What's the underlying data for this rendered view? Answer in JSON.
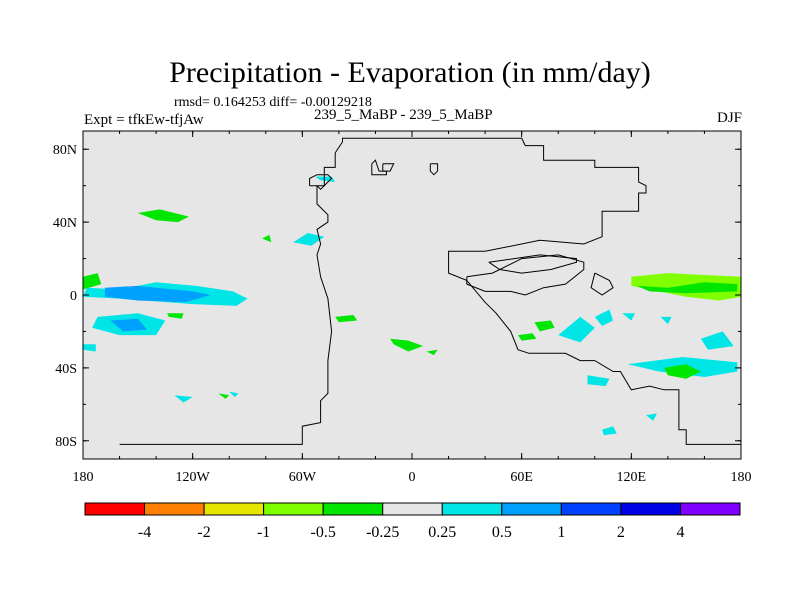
{
  "chart_data": {
    "type": "heatmap",
    "title": "Precipitation - Evaporation (in mm/day)",
    "stats_line": "rmsd= 0.164253 diff= -0.00129218",
    "left_label": "Expt = tfkEw-tfjAw",
    "center_label": "239_5_MaBP - 239_5_MaBP",
    "right_label": "DJF",
    "x_ticks": [
      {
        "value": -180,
        "label": "180"
      },
      {
        "value": -120,
        "label": "120W"
      },
      {
        "value": -60,
        "label": "60W"
      },
      {
        "value": 0,
        "label": "0"
      },
      {
        "value": 60,
        "label": "60E"
      },
      {
        "value": 120,
        "label": "120E"
      },
      {
        "value": 180,
        "label": "180"
      }
    ],
    "y_ticks": [
      {
        "value": 80,
        "label": "80N"
      },
      {
        "value": 40,
        "label": "40N"
      },
      {
        "value": 0,
        "label": "0"
      },
      {
        "value": -40,
        "label": "40S"
      },
      {
        "value": -80,
        "label": "80S"
      }
    ],
    "xlim": [
      -180,
      180
    ],
    "ylim": [
      -90,
      90
    ],
    "background_color": "#e6e6e6",
    "colorbar": {
      "colors": [
        "#ff0000",
        "#ff8000",
        "#e6e600",
        "#80ff00",
        "#00e600",
        "#e6e6e6",
        "#00e6e6",
        "#00a0ff",
        "#0040ff",
        "#0000e6",
        "#8000ff"
      ],
      "labels": [
        "-4",
        "-2",
        "-1",
        "-0.5",
        "-0.25",
        "0.25",
        "0.5",
        "1",
        "2",
        "4"
      ]
    },
    "anomaly_regions": [
      {
        "color": "#00e600",
        "points": [
          [
            -150,
            45
          ],
          [
            -140,
            41
          ],
          [
            -128,
            40
          ],
          [
            -122,
            43
          ],
          [
            -138,
            47
          ]
        ]
      },
      {
        "color": "#00e600",
        "points": [
          [
            -82,
            31
          ],
          [
            -77,
            29
          ],
          [
            -78,
            33
          ]
        ]
      },
      {
        "color": "#00e6e6",
        "points": [
          [
            -65,
            29
          ],
          [
            -55,
            27
          ],
          [
            -48,
            32
          ],
          [
            -57,
            34
          ]
        ]
      },
      {
        "color": "#00e6e6",
        "points": [
          [
            -53,
            65
          ],
          [
            -44,
            65
          ],
          [
            -42,
            62
          ],
          [
            -50,
            63
          ]
        ]
      },
      {
        "color": "#00e600",
        "points": [
          [
            -180,
            10
          ],
          [
            -172,
            12
          ],
          [
            -170,
            6
          ],
          [
            -180,
            3
          ]
        ]
      },
      {
        "color": "#00e6e6",
        "points": [
          [
            -178,
            4
          ],
          [
            -160,
            3
          ],
          [
            -140,
            7
          ],
          [
            -118,
            5
          ],
          [
            -98,
            2
          ],
          [
            -90,
            -2
          ],
          [
            -96,
            -6
          ],
          [
            -120,
            -5
          ],
          [
            -160,
            -2
          ],
          [
            -180,
            -1
          ]
        ]
      },
      {
        "color": "#00a0ff",
        "points": [
          [
            -168,
            4
          ],
          [
            -150,
            5
          ],
          [
            -120,
            2
          ],
          [
            -110,
            0
          ],
          [
            -124,
            -4
          ],
          [
            -150,
            -3
          ],
          [
            -168,
            -1
          ]
        ]
      },
      {
        "color": "#00e6e6",
        "points": [
          [
            -172,
            -12
          ],
          [
            -150,
            -10
          ],
          [
            -135,
            -14
          ],
          [
            -140,
            -22
          ],
          [
            -160,
            -22
          ],
          [
            -175,
            -18
          ]
        ]
      },
      {
        "color": "#00a0ff",
        "points": [
          [
            -165,
            -14
          ],
          [
            -150,
            -13
          ],
          [
            -145,
            -19
          ],
          [
            -158,
            -20
          ]
        ]
      },
      {
        "color": "#00e6e6",
        "points": [
          [
            -180,
            -27
          ],
          [
            -173,
            -27
          ],
          [
            -173,
            -31
          ],
          [
            -180,
            -30
          ]
        ]
      },
      {
        "color": "#00e600",
        "points": [
          [
            -134,
            -10
          ],
          [
            -125,
            -10
          ],
          [
            -126,
            -13
          ],
          [
            -133,
            -12
          ]
        ]
      },
      {
        "color": "#00e600",
        "points": [
          [
            -42,
            -12
          ],
          [
            -32,
            -11
          ],
          [
            -30,
            -14
          ],
          [
            -40,
            -15
          ]
        ]
      },
      {
        "color": "#00e600",
        "points": [
          [
            -12,
            -24
          ],
          [
            -2,
            -25
          ],
          [
            6,
            -28
          ],
          [
            -2,
            -31
          ],
          [
            -10,
            -27
          ]
        ]
      },
      {
        "color": "#00e600",
        "points": [
          [
            8,
            -31
          ],
          [
            14,
            -30
          ],
          [
            12,
            -33
          ]
        ]
      },
      {
        "color": "#80ff00",
        "points": [
          [
            120,
            10
          ],
          [
            140,
            12
          ],
          [
            160,
            11
          ],
          [
            180,
            10
          ],
          [
            180,
            -1
          ],
          [
            168,
            -3
          ],
          [
            150,
            -1
          ],
          [
            130,
            3
          ],
          [
            120,
            5
          ]
        ]
      },
      {
        "color": "#00e600",
        "points": [
          [
            123,
            5
          ],
          [
            140,
            4
          ],
          [
            160,
            7
          ],
          [
            178,
            6
          ],
          [
            178,
            2
          ],
          [
            150,
            1
          ],
          [
            130,
            2
          ]
        ]
      },
      {
        "color": "#00e6e6",
        "points": [
          [
            80,
            -22
          ],
          [
            92,
            -12
          ],
          [
            100,
            -18
          ],
          [
            92,
            -26
          ]
        ]
      },
      {
        "color": "#00e6e6",
        "points": [
          [
            100,
            -12
          ],
          [
            108,
            -8
          ],
          [
            110,
            -14
          ],
          [
            104,
            -17
          ]
        ]
      },
      {
        "color": "#00e6e6",
        "points": [
          [
            118,
            -38
          ],
          [
            148,
            -34
          ],
          [
            178,
            -37
          ],
          [
            178,
            -42
          ],
          [
            160,
            -45
          ],
          [
            135,
            -42
          ]
        ]
      },
      {
        "color": "#00e6e6",
        "points": [
          [
            158,
            -24
          ],
          [
            170,
            -20
          ],
          [
            176,
            -28
          ],
          [
            162,
            -30
          ]
        ]
      },
      {
        "color": "#00e600",
        "points": [
          [
            138,
            -40
          ],
          [
            150,
            -38
          ],
          [
            158,
            -42
          ],
          [
            150,
            -46
          ],
          [
            140,
            -44
          ]
        ]
      },
      {
        "color": "#00e600",
        "points": [
          [
            67,
            -15
          ],
          [
            76,
            -14
          ],
          [
            78,
            -18
          ],
          [
            70,
            -20
          ]
        ]
      },
      {
        "color": "#00e600",
        "points": [
          [
            58,
            -22
          ],
          [
            66,
            -21
          ],
          [
            68,
            -24
          ],
          [
            60,
            -25
          ]
        ]
      },
      {
        "color": "#00e6e6",
        "points": [
          [
            96,
            -44
          ],
          [
            108,
            -46
          ],
          [
            106,
            -50
          ],
          [
            96,
            -49
          ]
        ]
      },
      {
        "color": "#00e6e6",
        "points": [
          [
            115,
            -10
          ],
          [
            122,
            -10
          ],
          [
            120,
            -14
          ]
        ]
      },
      {
        "color": "#00e6e6",
        "points": [
          [
            136,
            -12
          ],
          [
            142,
            -12
          ],
          [
            140,
            -16
          ]
        ]
      },
      {
        "color": "#00e6e6",
        "points": [
          [
            -130,
            -55
          ],
          [
            -120,
            -56
          ],
          [
            -125,
            -59
          ]
        ]
      },
      {
        "color": "#00e600",
        "points": [
          [
            -106,
            -54
          ],
          [
            -100,
            -55
          ],
          [
            -102,
            -57
          ]
        ]
      },
      {
        "color": "#00e6e6",
        "points": [
          [
            -100,
            -53
          ],
          [
            -95,
            -54
          ],
          [
            -97,
            -56
          ]
        ]
      },
      {
        "color": "#00e6e6",
        "points": [
          [
            104,
            -74
          ],
          [
            110,
            -72
          ],
          [
            112,
            -76
          ],
          [
            105,
            -77
          ]
        ]
      },
      {
        "color": "#00e6e6",
        "points": [
          [
            128,
            -66
          ],
          [
            134,
            -65
          ],
          [
            132,
            -69
          ]
        ]
      }
    ],
    "coastlines": [
      [
        [
          -160,
          -82
        ],
        [
          -60,
          -82
        ],
        [
          -60,
          -72
        ],
        [
          -50,
          -70
        ],
        [
          -50,
          -58
        ],
        [
          -46,
          -54
        ],
        [
          -46,
          -36
        ],
        [
          -44,
          -20
        ],
        [
          -46,
          -2
        ],
        [
          -50,
          10
        ],
        [
          -52,
          22
        ],
        [
          -50,
          28
        ],
        [
          -52,
          36
        ],
        [
          -46,
          40
        ],
        [
          -46,
          44
        ],
        [
          -50,
          48
        ],
        [
          -52,
          50
        ],
        [
          -52,
          60
        ],
        [
          -48,
          60
        ],
        [
          -48,
          70
        ],
        [
          -42,
          70
        ],
        [
          -42,
          78
        ],
        [
          -38,
          84
        ],
        [
          -38,
          86
        ],
        [
          60,
          86
        ],
        [
          62,
          82
        ],
        [
          72,
          82
        ],
        [
          72,
          74
        ],
        [
          100,
          74
        ],
        [
          100,
          70
        ],
        [
          124,
          70
        ],
        [
          124,
          62
        ],
        [
          128,
          60
        ],
        [
          128,
          56
        ],
        [
          124,
          56
        ],
        [
          124,
          46
        ],
        [
          104,
          46
        ],
        [
          104,
          32
        ],
        [
          94,
          28
        ],
        [
          70,
          30
        ],
        [
          40,
          24
        ],
        [
          20,
          24
        ],
        [
          20,
          22
        ],
        [
          20,
          12
        ],
        [
          30,
          8
        ],
        [
          40,
          -4
        ],
        [
          46,
          -10
        ],
        [
          54,
          -20
        ],
        [
          58,
          -30
        ],
        [
          64,
          -32
        ],
        [
          84,
          -32
        ],
        [
          92,
          -36
        ],
        [
          100,
          -36
        ],
        [
          110,
          -42
        ],
        [
          114,
          -42
        ],
        [
          120,
          -52
        ],
        [
          130,
          -50
        ],
        [
          138,
          -52
        ],
        [
          146,
          -52
        ],
        [
          146,
          -74
        ],
        [
          150,
          -74
        ],
        [
          150,
          -82
        ],
        [
          180,
          -82
        ]
      ],
      [
        [
          -56,
          60
        ],
        [
          -52,
          60
        ],
        [
          -50,
          58
        ],
        [
          -46,
          62
        ],
        [
          -44,
          64
        ],
        [
          -46,
          66
        ],
        [
          -52,
          66
        ],
        [
          -56,
          64
        ],
        [
          -56,
          60
        ]
      ],
      [
        [
          -22,
          72
        ],
        [
          -20,
          74
        ],
        [
          -18,
          68
        ],
        [
          -14,
          68
        ],
        [
          -14,
          66
        ],
        [
          -22,
          66
        ],
        [
          -22,
          72
        ]
      ],
      [
        [
          -16,
          72
        ],
        [
          -10,
          72
        ],
        [
          -12,
          68
        ],
        [
          -16,
          68
        ],
        [
          -16,
          72
        ]
      ],
      [
        [
          10,
          72
        ],
        [
          14,
          72
        ],
        [
          14,
          68
        ],
        [
          12,
          66
        ],
        [
          10,
          68
        ],
        [
          10,
          72
        ]
      ],
      [
        [
          30,
          10
        ],
        [
          44,
          12
        ],
        [
          60,
          20
        ],
        [
          80,
          22
        ],
        [
          94,
          18
        ],
        [
          94,
          14
        ],
        [
          84,
          6
        ],
        [
          72,
          4
        ],
        [
          62,
          0
        ],
        [
          54,
          2
        ],
        [
          40,
          2
        ],
        [
          30,
          6
        ],
        [
          30,
          10
        ]
      ],
      [
        [
          42,
          18
        ],
        [
          56,
          20
        ],
        [
          70,
          22
        ],
        [
          90,
          20
        ],
        [
          90,
          18
        ],
        [
          76,
          14
        ],
        [
          60,
          12
        ],
        [
          48,
          14
        ],
        [
          42,
          18
        ]
      ],
      [
        [
          100,
          12
        ],
        [
          108,
          8
        ],
        [
          110,
          4
        ],
        [
          104,
          0
        ],
        [
          98,
          4
        ],
        [
          100,
          12
        ]
      ]
    ]
  }
}
